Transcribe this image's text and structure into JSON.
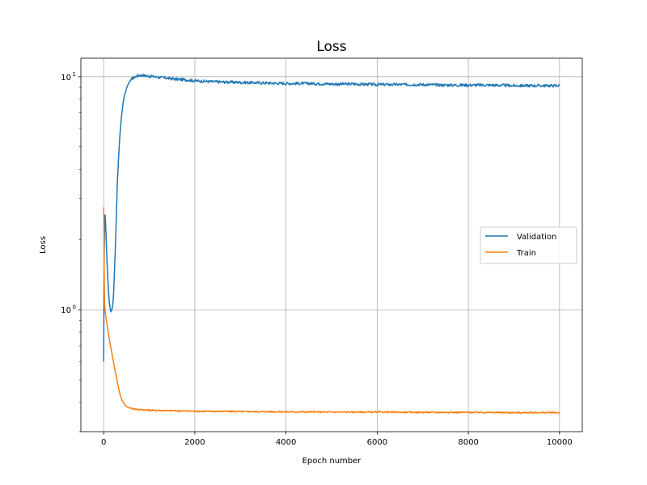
{
  "chart_data": {
    "type": "line",
    "title": "Loss",
    "xlabel": "Epoch number",
    "ylabel": "Loss",
    "xlim": [
      -500,
      10500
    ],
    "ylim": [
      0.3,
      12
    ],
    "yscale": "log",
    "grid": true,
    "legend_position": "center-right",
    "x_ticks": [
      {
        "value": 0,
        "label": "0"
      },
      {
        "value": 2000,
        "label": "2000"
      },
      {
        "value": 4000,
        "label": "4000"
      },
      {
        "value": 6000,
        "label": "6000"
      },
      {
        "value": 8000,
        "label": "8000"
      },
      {
        "value": 10000,
        "label": "10000"
      }
    ],
    "y_ticks": [
      {
        "value": 1,
        "base": "10",
        "exp": "0"
      },
      {
        "value": 10,
        "base": "10",
        "exp": "1"
      }
    ],
    "series": [
      {
        "name": "Validation",
        "color": "#1f77b4",
        "x": [
          0,
          10,
          20,
          30,
          40,
          60,
          80,
          100,
          120,
          140,
          160,
          180,
          200,
          220,
          250,
          280,
          300,
          330,
          350,
          380,
          400,
          430,
          450,
          480,
          500,
          550,
          600,
          650,
          700,
          750,
          800,
          850,
          900,
          1000,
          1100,
          1200,
          1400,
          1600,
          1800,
          2000,
          2200,
          2500,
          3000,
          3500,
          4000,
          4500,
          5000,
          5500,
          6000,
          6500,
          7000,
          7500,
          8000,
          8500,
          9000,
          9500,
          10000
        ],
        "y": [
          0.6,
          1.6,
          2.3,
          2.55,
          2.4,
          1.9,
          1.5,
          1.25,
          1.1,
          1.02,
          0.98,
          1.0,
          1.05,
          1.2,
          1.7,
          2.6,
          3.5,
          4.6,
          5.4,
          6.4,
          7.0,
          7.8,
          8.2,
          8.6,
          8.9,
          9.4,
          9.7,
          9.9,
          10.0,
          10.1,
          10.15,
          10.15,
          10.1,
          10.05,
          10.0,
          9.95,
          9.85,
          9.75,
          9.7,
          9.6,
          9.55,
          9.5,
          9.45,
          9.4,
          9.35,
          9.35,
          9.3,
          9.3,
          9.25,
          9.25,
          9.25,
          9.2,
          9.2,
          9.2,
          9.15,
          9.15,
          9.15
        ]
      },
      {
        "name": "Train",
        "color": "#ff7f0e",
        "x": [
          0,
          5,
          10,
          20,
          40,
          60,
          100,
          150,
          200,
          250,
          300,
          350,
          400,
          450,
          500,
          550,
          600,
          700,
          800,
          1000,
          1500,
          2000,
          3000,
          4000,
          5000,
          6000,
          7000,
          8000,
          9000,
          10000
        ],
        "y": [
          2.75,
          2.2,
          1.5,
          1.05,
          0.96,
          0.9,
          0.8,
          0.7,
          0.62,
          0.55,
          0.49,
          0.44,
          0.41,
          0.395,
          0.385,
          0.38,
          0.378,
          0.375,
          0.373,
          0.371,
          0.369,
          0.367,
          0.366,
          0.365,
          0.364,
          0.364,
          0.363,
          0.363,
          0.362,
          0.362
        ]
      }
    ]
  }
}
